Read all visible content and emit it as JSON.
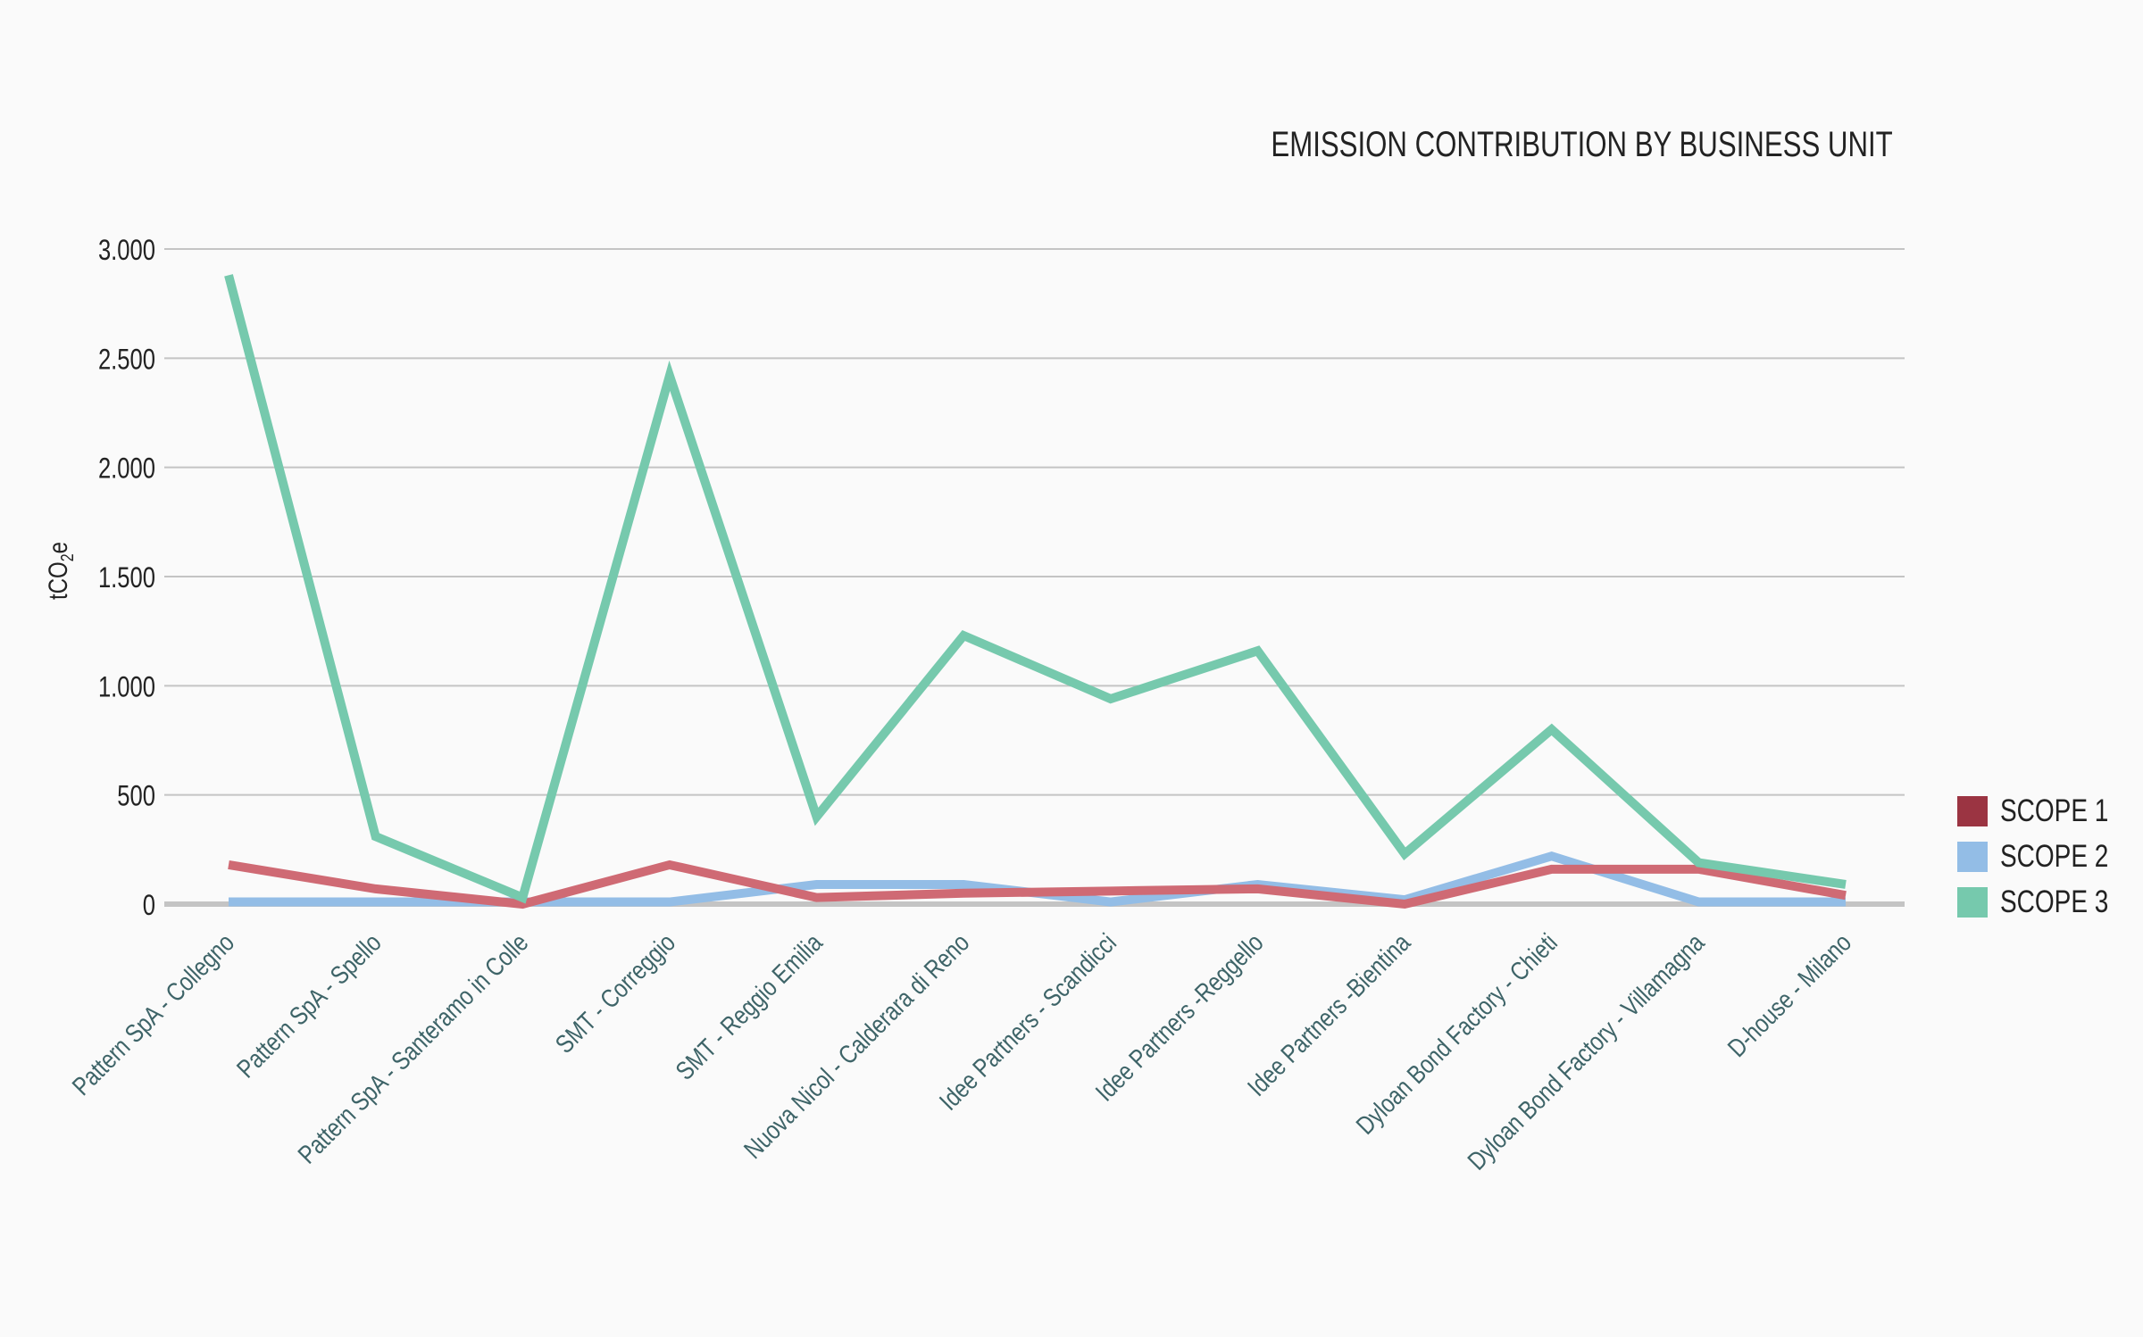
{
  "chart_data": {
    "type": "line",
    "title": "EMISSION CONTRIBUTION BY BUSINESS UNIT",
    "xlabel": "",
    "ylabel": "tCO2e",
    "ylabel_main": "tCO",
    "ylabel_sub": "2",
    "ylabel_tail": "e",
    "ylim": [
      0,
      3000
    ],
    "yticks": [
      0,
      500,
      1000,
      1500,
      2000,
      2500,
      3000
    ],
    "ytick_labels": [
      "0",
      "500",
      "1.000",
      "1.500",
      "2.000",
      "2.500",
      "3.000"
    ],
    "grid": true,
    "legend_position": "right",
    "categories": [
      "Pattern SpA - Collegno",
      "Pattern SpA - Spello",
      "Pattern SpA - Santeramo in Colle",
      "SMT - Correggio",
      "SMT - Reggio Emilia",
      "Nuova Nicol - Calderara di Reno",
      "Idee Partners - Scandicci",
      "Idee Partners -Reggello",
      "Idee Partners -Bientina",
      "Dyloan Bond Factory - Chieti",
      "Dyloan Bond Factory - Villamagna",
      "D-house - Milano"
    ],
    "series": [
      {
        "name": "SCOPE 1",
        "color": "#9b3442",
        "line_color": "#cf6a74",
        "values": [
          180,
          70,
          0,
          180,
          30,
          50,
          60,
          70,
          0,
          160,
          160,
          40
        ]
      },
      {
        "name": "SCOPE 2",
        "color": "#93bde6",
        "line_color": "#93bde6",
        "values": [
          10,
          10,
          10,
          10,
          90,
          90,
          10,
          90,
          20,
          220,
          10,
          10
        ]
      },
      {
        "name": "SCOPE 3",
        "color": "#76c9ad",
        "line_color": "#76c9ad",
        "values": [
          2880,
          310,
          30,
          2420,
          400,
          1230,
          940,
          1160,
          230,
          800,
          190,
          90
        ]
      }
    ]
  }
}
